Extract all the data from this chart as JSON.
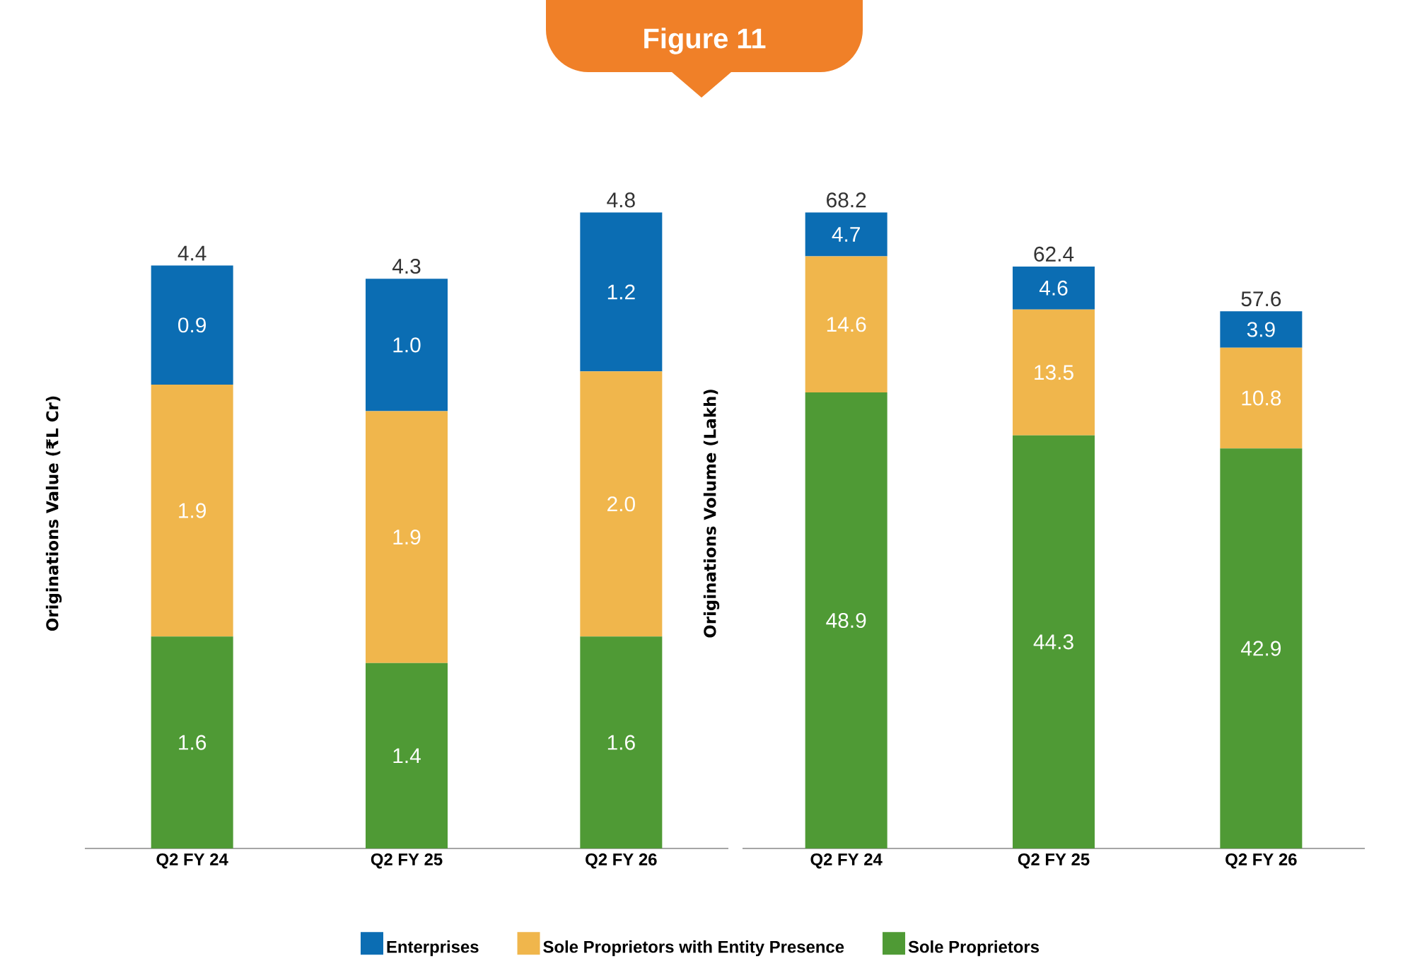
{
  "chart_data": [
    {
      "type": "bar",
      "title": "Figure 11",
      "stacked": true,
      "legend": "bottom",
      "ylabel": "Originations Value (₹L Cr)",
      "categories": [
        "Q2 FY 24",
        "Q2 FY 25",
        "Q2 FY 26"
      ],
      "series": [
        {
          "name": "Sole Proprietors",
          "color": "#4f9a35",
          "values": [
            1.6,
            1.4,
            1.6
          ],
          "value_labels": [
            "1.6",
            "1.4",
            "1.6"
          ]
        },
        {
          "name": "Sole Proprietors with Entity Presence",
          "color": "#f0b64c",
          "values": [
            1.9,
            1.9,
            2.0
          ],
          "value_labels": [
            "1.9",
            "1.9",
            "2.0"
          ]
        },
        {
          "name": "Enterprises",
          "color": "#0b6db3",
          "values": [
            0.9,
            1.0,
            1.2
          ],
          "value_labels": [
            "0.9",
            "1.0",
            "1.2"
          ]
        }
      ],
      "totals": [
        "4.4",
        "4.3",
        "4.8"
      ]
    },
    {
      "type": "bar",
      "stacked": true,
      "ylabel": "Originations Volume (Lakh)",
      "categories": [
        "Q2 FY 24",
        "Q2 FY 25",
        "Q2 FY 26"
      ],
      "series": [
        {
          "color": "#4f9a35",
          "values": [
            48.9,
            44.3,
            42.9
          ],
          "value_labels": [
            "48.9",
            "44.3",
            "42.9"
          ]
        },
        {
          "color": "#f0b64c",
          "values": [
            14.6,
            13.5,
            10.8
          ],
          "value_labels": [
            "14.6",
            "13.5",
            "10.8"
          ]
        },
        {
          "color": "#0b6db3",
          "values": [
            4.7,
            4.6,
            3.9
          ],
          "value_labels": [
            "4.7",
            "4.6",
            "3.9"
          ]
        }
      ],
      "totals": [
        "68.2",
        "62.4",
        "57.6"
      ]
    }
  ]
}
